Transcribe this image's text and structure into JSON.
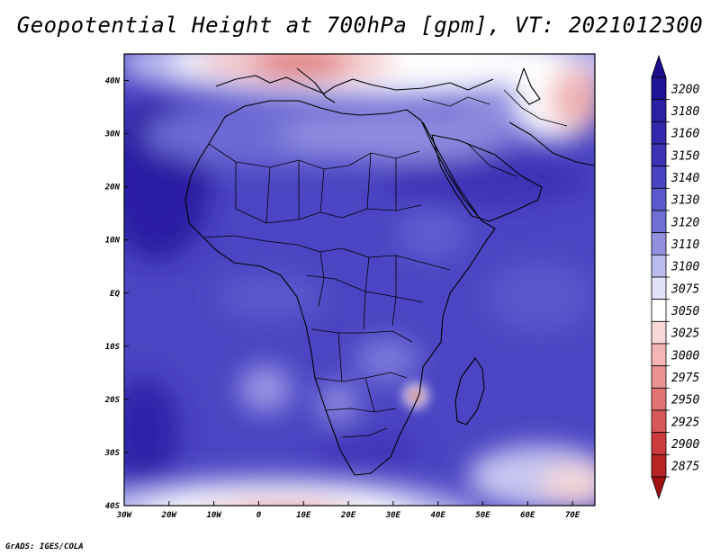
{
  "title": "Geopotential Height at 700hPa [gpm], VT: 2021012300",
  "credit": "GrADS: IGES/COLA",
  "map": {
    "lon_range": [
      -30,
      75
    ],
    "lat_range": [
      -40,
      45
    ],
    "lon_ticks": [
      {
        "value": -30,
        "label": "30W"
      },
      {
        "value": -20,
        "label": "20W"
      },
      {
        "value": -10,
        "label": "10W"
      },
      {
        "value": 0,
        "label": "0"
      },
      {
        "value": 10,
        "label": "10E"
      },
      {
        "value": 20,
        "label": "20E"
      },
      {
        "value": 30,
        "label": "30E"
      },
      {
        "value": 40,
        "label": "40E"
      },
      {
        "value": 50,
        "label": "50E"
      },
      {
        "value": 60,
        "label": "60E"
      },
      {
        "value": 70,
        "label": "70E"
      }
    ],
    "lat_ticks": [
      {
        "value": 40,
        "label": "40N"
      },
      {
        "value": 30,
        "label": "30N"
      },
      {
        "value": 20,
        "label": "20N"
      },
      {
        "value": 10,
        "label": "10N"
      },
      {
        "value": 0,
        "label": "EQ"
      },
      {
        "value": -10,
        "label": "10S"
      },
      {
        "value": -20,
        "label": "20S"
      },
      {
        "value": -30,
        "label": "30S"
      },
      {
        "value": -40,
        "label": "40S"
      }
    ]
  },
  "colorbar": {
    "levels": [
      {
        "label": "3200",
        "color": "#1e1296"
      },
      {
        "label": "3180",
        "color": "#2a20a4"
      },
      {
        "label": "3160",
        "color": "#3327ad"
      },
      {
        "label": "3150",
        "color": "#3b32b6"
      },
      {
        "label": "3140",
        "color": "#4a44c2"
      },
      {
        "label": "3130",
        "color": "#5b58cc"
      },
      {
        "label": "3120",
        "color": "#716fd6"
      },
      {
        "label": "3110",
        "color": "#9390e0"
      },
      {
        "label": "3100",
        "color": "#bdbcee"
      },
      {
        "label": "3075",
        "color": "#e2e2f8"
      },
      {
        "label": "3050",
        "color": "#ffffff"
      },
      {
        "label": "3025",
        "color": "#f9d8d8"
      },
      {
        "label": "3000",
        "color": "#f3b5b5"
      },
      {
        "label": "2975",
        "color": "#ec9494"
      },
      {
        "label": "2950",
        "color": "#e27474"
      },
      {
        "label": "2925",
        "color": "#d85858"
      },
      {
        "label": "2900",
        "color": "#cc3c3c"
      },
      {
        "label": "2875",
        "color": "#b62424"
      }
    ],
    "top_arrow_color": "#1a0c8a",
    "bottom_arrow_color": "#a01010"
  }
}
